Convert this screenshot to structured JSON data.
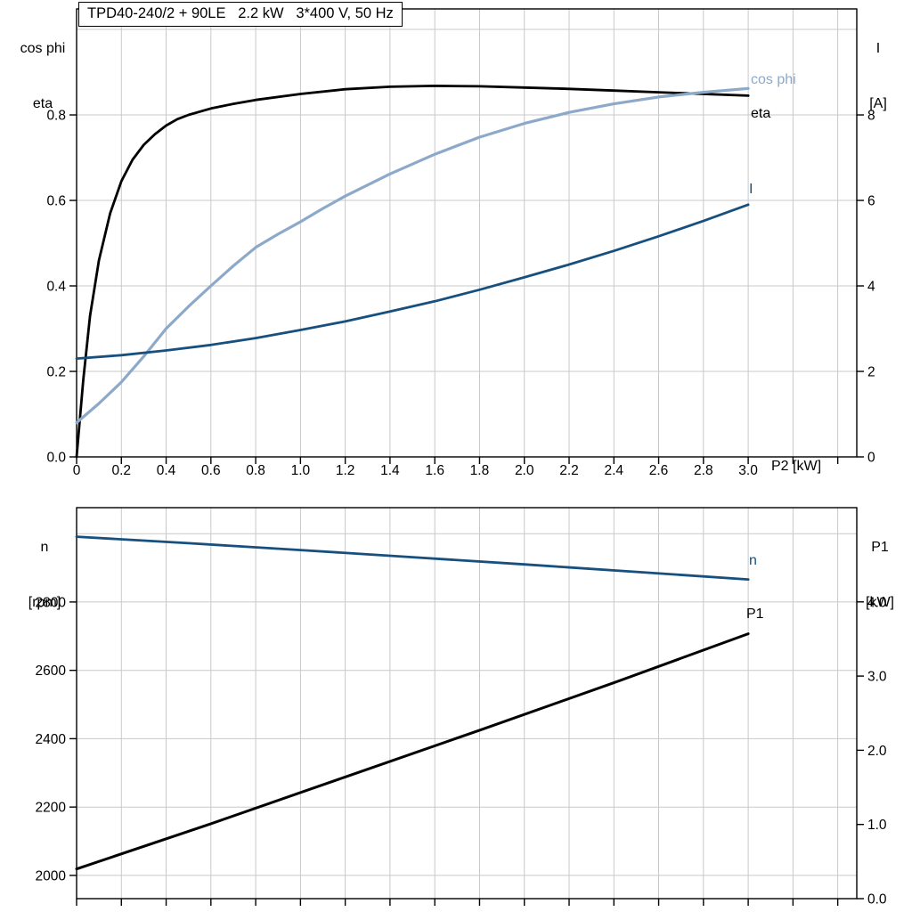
{
  "title_box": {
    "text": "TPD40-240/2 + 90LE   2.2 kW   3*400 V, 50 Hz"
  },
  "colors": {
    "eta": "#000000",
    "cos_phi": "#8da9c9",
    "current": "#17507e",
    "speed": "#17507e",
    "p1": "#000000",
    "grid": "#c9c9c9",
    "frame": "#000000",
    "background": "#ffffff"
  },
  "top_chart": {
    "left_axis_line1": "cos phi",
    "left_axis_line2": "eta",
    "right_axis_line1": "I",
    "right_axis_line2": "[A]",
    "x_axis_title": "P2 [kW]",
    "curve_labels": {
      "cos_phi": "cos phi",
      "eta": "eta",
      "current": "I"
    }
  },
  "bottom_chart": {
    "left_axis_line1": "n",
    "left_axis_line2": "[rpm]",
    "right_axis_line1": "P1",
    "right_axis_line2": "[kW]",
    "curve_labels": {
      "speed": "n",
      "p1": "P1"
    }
  },
  "chart_data": [
    {
      "type": "line",
      "title": "TPD40-240/2 + 90LE   2.2 kW   3*400 V, 50 Hz",
      "xlabel": "P2 [kW]",
      "left_axis_label": "cos phi / eta",
      "right_axis_label": "I [A]",
      "xlim": [
        0,
        3.485
      ],
      "left_lim": [
        0,
        1.048
      ],
      "right_lim": [
        0,
        10.48
      ],
      "grid": true,
      "x_grid": [
        0.2,
        0.4,
        0.6,
        0.8,
        1.0,
        1.2,
        1.4,
        1.6,
        1.8,
        2.0,
        2.2,
        2.4,
        2.6,
        2.8,
        3.0,
        3.2,
        3.4
      ],
      "y_grid": [
        0.2,
        0.4,
        0.6,
        0.8,
        1.0
      ],
      "x_ticks": {
        "values": [
          0,
          0.2,
          0.4,
          0.6,
          0.8,
          1.0,
          1.2,
          1.4,
          1.6,
          1.8,
          2.0,
          2.2,
          2.4,
          2.6,
          2.8,
          3.0,
          3.2,
          3.4
        ],
        "labels": [
          "0",
          "0.2",
          "0.4",
          "0.6",
          "0.8",
          "1.0",
          "1.2",
          "1.4",
          "1.6",
          "1.8",
          "2.0",
          "2.2",
          "2.4",
          "2.6",
          "2.8",
          "3.0",
          "",
          ""
        ]
      },
      "left_ticks": {
        "values": [
          0,
          0.2,
          0.4,
          0.6,
          0.8
        ],
        "labels": [
          "0.0",
          "0.2",
          "0.4",
          "0.6",
          "0.8"
        ]
      },
      "right_ticks": {
        "values": [
          0,
          2,
          4,
          6,
          8
        ],
        "labels": [
          "0",
          "2",
          "4",
          "6",
          "8"
        ]
      },
      "series": [
        {
          "name": "eta",
          "axis": "left",
          "color": "#000000",
          "width": 2.8,
          "points": [
            [
              0,
              0
            ],
            [
              0.03,
              0.18
            ],
            [
              0.06,
              0.33
            ],
            [
              0.1,
              0.46
            ],
            [
              0.15,
              0.57
            ],
            [
              0.2,
              0.645
            ],
            [
              0.25,
              0.695
            ],
            [
              0.3,
              0.73
            ],
            [
              0.35,
              0.755
            ],
            [
              0.4,
              0.775
            ],
            [
              0.45,
              0.79
            ],
            [
              0.5,
              0.8
            ],
            [
              0.6,
              0.815
            ],
            [
              0.7,
              0.826
            ],
            [
              0.8,
              0.835
            ],
            [
              1.0,
              0.849
            ],
            [
              1.2,
              0.86
            ],
            [
              1.4,
              0.866
            ],
            [
              1.6,
              0.868
            ],
            [
              1.8,
              0.867
            ],
            [
              2.0,
              0.864
            ],
            [
              2.2,
              0.861
            ],
            [
              2.4,
              0.857
            ],
            [
              2.6,
              0.853
            ],
            [
              2.8,
              0.849
            ],
            [
              3.0,
              0.845
            ]
          ]
        },
        {
          "name": "cos phi",
          "axis": "left",
          "color": "#8da9c9",
          "width": 3.2,
          "points": [
            [
              0,
              0.08
            ],
            [
              0.1,
              0.125
            ],
            [
              0.2,
              0.175
            ],
            [
              0.3,
              0.235
            ],
            [
              0.4,
              0.3
            ],
            [
              0.5,
              0.352
            ],
            [
              0.6,
              0.4
            ],
            [
              0.7,
              0.447
            ],
            [
              0.8,
              0.49
            ],
            [
              0.9,
              0.521
            ],
            [
              1.0,
              0.55
            ],
            [
              1.1,
              0.581
            ],
            [
              1.2,
              0.61
            ],
            [
              1.4,
              0.662
            ],
            [
              1.6,
              0.708
            ],
            [
              1.8,
              0.748
            ],
            [
              2.0,
              0.78
            ],
            [
              2.2,
              0.806
            ],
            [
              2.4,
              0.826
            ],
            [
              2.6,
              0.842
            ],
            [
              2.8,
              0.853
            ],
            [
              3.0,
              0.862
            ]
          ]
        },
        {
          "name": "I",
          "axis": "right",
          "color": "#17507e",
          "width": 2.8,
          "points": [
            [
              0,
              2.3
            ],
            [
              0.2,
              2.38
            ],
            [
              0.4,
              2.49
            ],
            [
              0.6,
              2.62
            ],
            [
              0.8,
              2.78
            ],
            [
              1.0,
              2.97
            ],
            [
              1.2,
              3.17
            ],
            [
              1.4,
              3.4
            ],
            [
              1.6,
              3.64
            ],
            [
              1.8,
              3.91
            ],
            [
              2.0,
              4.2
            ],
            [
              2.2,
              4.5
            ],
            [
              2.4,
              4.82
            ],
            [
              2.6,
              5.16
            ],
            [
              2.8,
              5.52
            ],
            [
              3.0,
              5.9
            ]
          ]
        }
      ]
    },
    {
      "type": "line",
      "title": "",
      "xlabel": "",
      "left_axis_label": "n [rpm]",
      "right_axis_label": "P1 [kW]",
      "xlim": [
        0,
        3.485
      ],
      "left_lim": [
        1932,
        3076
      ],
      "right_lim": [
        0,
        5.27
      ],
      "grid": true,
      "x_grid": [
        0.2,
        0.4,
        0.6,
        0.8,
        1.0,
        1.2,
        1.4,
        1.6,
        1.8,
        2.0,
        2.2,
        2.4,
        2.6,
        2.8,
        3.0,
        3.2,
        3.4
      ],
      "y_grid": [
        2000,
        2200,
        2400,
        2600,
        2800,
        3000
      ],
      "x_ticks": {
        "values": [
          0,
          0.2,
          0.4,
          0.6,
          0.8,
          1.0,
          1.2,
          1.4,
          1.6,
          1.8,
          2.0,
          2.2,
          2.4,
          2.6,
          2.8,
          3.0,
          3.2,
          3.4
        ],
        "labels": [
          "",
          "",
          "",
          "",
          "",
          "",
          "",
          "",
          "",
          "",
          "",
          "",
          "",
          "",
          "",
          "",
          "",
          ""
        ]
      },
      "left_ticks": {
        "values": [
          2000,
          2200,
          2400,
          2600,
          2800
        ],
        "labels": [
          "2000",
          "2200",
          "2400",
          "2600",
          "2800"
        ]
      },
      "right_ticks": {
        "values": [
          0,
          1,
          2,
          3,
          4
        ],
        "labels": [
          "0.0",
          "1.0",
          "2.0",
          "3.0",
          "4.0"
        ]
      },
      "series": [
        {
          "name": "n",
          "axis": "left",
          "color": "#17507e",
          "width": 2.8,
          "points": [
            [
              0,
              2991
            ],
            [
              0.5,
              2972
            ],
            [
              1.0,
              2952
            ],
            [
              1.5,
              2931
            ],
            [
              2.0,
              2910
            ],
            [
              2.5,
              2888
            ],
            [
              3.0,
              2866
            ]
          ]
        },
        {
          "name": "P1",
          "axis": "right",
          "color": "#000000",
          "width": 3.0,
          "points": [
            [
              0,
              0.4
            ],
            [
              0.6,
              1.01
            ],
            [
              1.2,
              1.64
            ],
            [
              1.8,
              2.27
            ],
            [
              2.4,
              2.91
            ],
            [
              3.0,
              3.57
            ]
          ]
        }
      ]
    }
  ]
}
